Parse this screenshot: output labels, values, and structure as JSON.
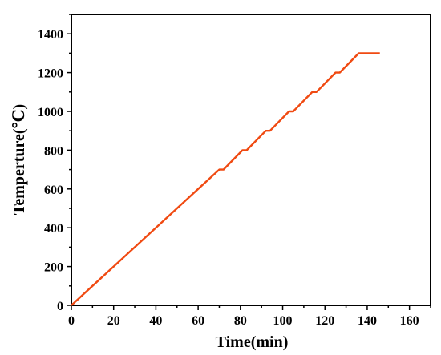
{
  "chart_data": {
    "type": "line",
    "title": "",
    "xlabel": "Time(min)",
    "ylabel": "Temperture(℃)",
    "xlim": [
      0,
      170
    ],
    "ylim": [
      0,
      1500
    ],
    "xticks": [
      0,
      20,
      40,
      60,
      80,
      100,
      120,
      140,
      160
    ],
    "yticks": [
      0,
      200,
      400,
      600,
      800,
      1000,
      1200,
      1400
    ],
    "grid": false,
    "legend": "none",
    "series": [
      {
        "color": "#f04a12",
        "x": [
          0,
          70,
          72,
          81,
          83,
          92,
          94,
          103,
          105,
          114,
          116,
          125,
          127,
          136,
          146
        ],
        "y": [
          0,
          700,
          700,
          800,
          800,
          900,
          900,
          1000,
          1000,
          1100,
          1100,
          1200,
          1200,
          1300,
          1300
        ]
      }
    ]
  }
}
